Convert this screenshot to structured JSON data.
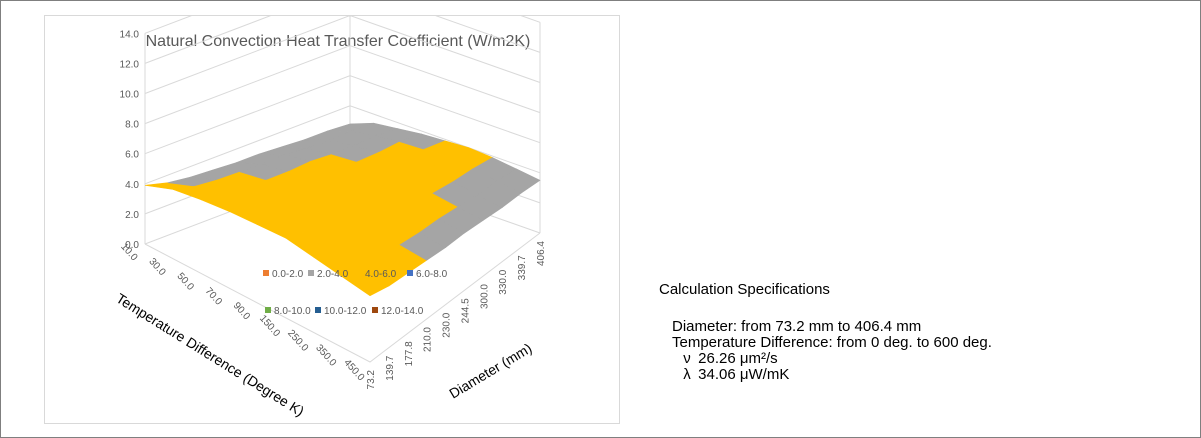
{
  "chart_data": {
    "type": "surface",
    "title": "Natural Convection Heat Transfer Coefficient (W/m2K)",
    "xlabel": "Temperature Difference (Degree K)",
    "ylabel": "Diameter (mm)",
    "zlim": [
      0,
      14
    ],
    "z_ticks": [
      "0.0",
      "2.0",
      "4.0",
      "6.0",
      "8.0",
      "10.0",
      "12.0",
      "14.0"
    ],
    "temperature_difference": [
      "10.0",
      "30.0",
      "50.0",
      "70.0",
      "90.0",
      "150.0",
      "250.0",
      "350.0",
      "450.0"
    ],
    "diameter": [
      "73.2",
      "139.7",
      "177.8",
      "210.0",
      "230.0",
      "244.5",
      "300.0",
      "330.0",
      "339.7",
      "406.4"
    ],
    "values_by_temperature": [
      {
        "dT": "10.0",
        "h": [
          3.9,
          3.5,
          3.3,
          3.2,
          3.1,
          3.1,
          3.0,
          2.9,
          2.9,
          2.8
        ]
      },
      {
        "dT": "30.0",
        "h": [
          4.6,
          4.2,
          4.0,
          3.9,
          3.8,
          3.8,
          3.6,
          3.5,
          3.5,
          3.4
        ]
      },
      {
        "dT": "50.0",
        "h": [
          4.9,
          4.5,
          4.3,
          4.2,
          4.1,
          4.1,
          3.9,
          3.8,
          3.8,
          3.6
        ]
      },
      {
        "dT": "70.0",
        "h": [
          5.1,
          4.7,
          4.5,
          4.4,
          4.3,
          4.3,
          4.1,
          4.0,
          4.0,
          3.8
        ]
      },
      {
        "dT": "90.0",
        "h": [
          5.2,
          4.8,
          4.6,
          4.5,
          4.4,
          4.4,
          4.2,
          4.1,
          4.1,
          3.9
        ]
      },
      {
        "dT": "150.0",
        "h": [
          5.3,
          4.9,
          4.7,
          4.6,
          4.5,
          4.5,
          4.3,
          4.2,
          4.2,
          4.0
        ]
      },
      {
        "dT": "250.0",
        "h": [
          5.0,
          4.7,
          4.5,
          4.4,
          4.3,
          4.3,
          4.1,
          4.0,
          4.0,
          3.9
        ]
      },
      {
        "dT": "350.0",
        "h": [
          4.7,
          4.4,
          4.2,
          4.1,
          4.0,
          4.0,
          3.9,
          3.8,
          3.8,
          3.7
        ]
      },
      {
        "dT": "450.0",
        "h": [
          4.4,
          4.1,
          4.0,
          3.9,
          3.8,
          3.8,
          3.7,
          3.6,
          3.6,
          3.5
        ]
      }
    ],
    "legend": [
      {
        "label": "0.0-2.0",
        "color": "#ed7d31"
      },
      {
        "label": "2.0-4.0",
        "color": "#a5a5a5"
      },
      {
        "label": "4.0-6.0",
        "color": "#ffc000"
      },
      {
        "label": "6.0-8.0",
        "color": "#4472c4"
      },
      {
        "label": "8.0-10.0",
        "color": "#70ad47"
      },
      {
        "label": "10.0-12.0",
        "color": "#255e91"
      },
      {
        "label": "12.0-14.0",
        "color": "#9e480e"
      }
    ],
    "legend_position": "inside-center",
    "grid": true
  },
  "specs": {
    "title": "Calculation Specifications",
    "diameter": "Diameter: from 73.2 mm to 406.4 mm",
    "temperature": "Temperature Difference: from 0 deg. to 600 deg.",
    "nu_symbol": "ν",
    "nu_value": "26.26 μm²/s",
    "lambda_symbol": "λ",
    "lambda_value": "34.06 μW/mK"
  }
}
